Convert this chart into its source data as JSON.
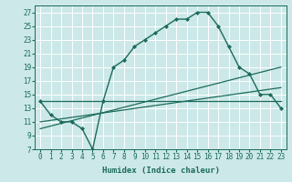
{
  "xlabel": "Humidex (Indice chaleur)",
  "ylabel": "",
  "background_color": "#cce8e8",
  "grid_color": "#ffffff",
  "line_color": "#1a6b5a",
  "xlim": [
    -0.5,
    23.5
  ],
  "ylim": [
    7,
    28
  ],
  "yticks": [
    7,
    9,
    11,
    13,
    15,
    17,
    19,
    21,
    23,
    25,
    27
  ],
  "xticks": [
    0,
    1,
    2,
    3,
    4,
    5,
    6,
    7,
    8,
    9,
    10,
    11,
    12,
    13,
    14,
    15,
    16,
    17,
    18,
    19,
    20,
    21,
    22,
    23
  ],
  "series": [
    {
      "x": [
        0,
        1,
        2,
        3,
        4,
        5,
        6,
        7,
        8,
        9,
        10,
        11,
        12,
        13,
        14,
        15,
        16,
        17,
        18,
        19,
        20,
        21,
        22,
        23
      ],
      "y": [
        14,
        12,
        11,
        11,
        10,
        7,
        14,
        19,
        20,
        22,
        23,
        24,
        25,
        26,
        26,
        27,
        27,
        25,
        22,
        19,
        18,
        15,
        15,
        13
      ],
      "color": "#1a6b5a",
      "linewidth": 1.0,
      "marker": "D",
      "markersize": 2.0
    },
    {
      "x": [
        0,
        23
      ],
      "y": [
        14,
        14
      ],
      "color": "#1a6b5a",
      "linewidth": 0.9,
      "marker": null
    },
    {
      "x": [
        0,
        23
      ],
      "y": [
        11,
        16
      ],
      "color": "#1a6b5a",
      "linewidth": 0.9,
      "marker": null
    },
    {
      "x": [
        0,
        23
      ],
      "y": [
        10,
        19
      ],
      "color": "#1a6b5a",
      "linewidth": 0.9,
      "marker": null
    }
  ]
}
